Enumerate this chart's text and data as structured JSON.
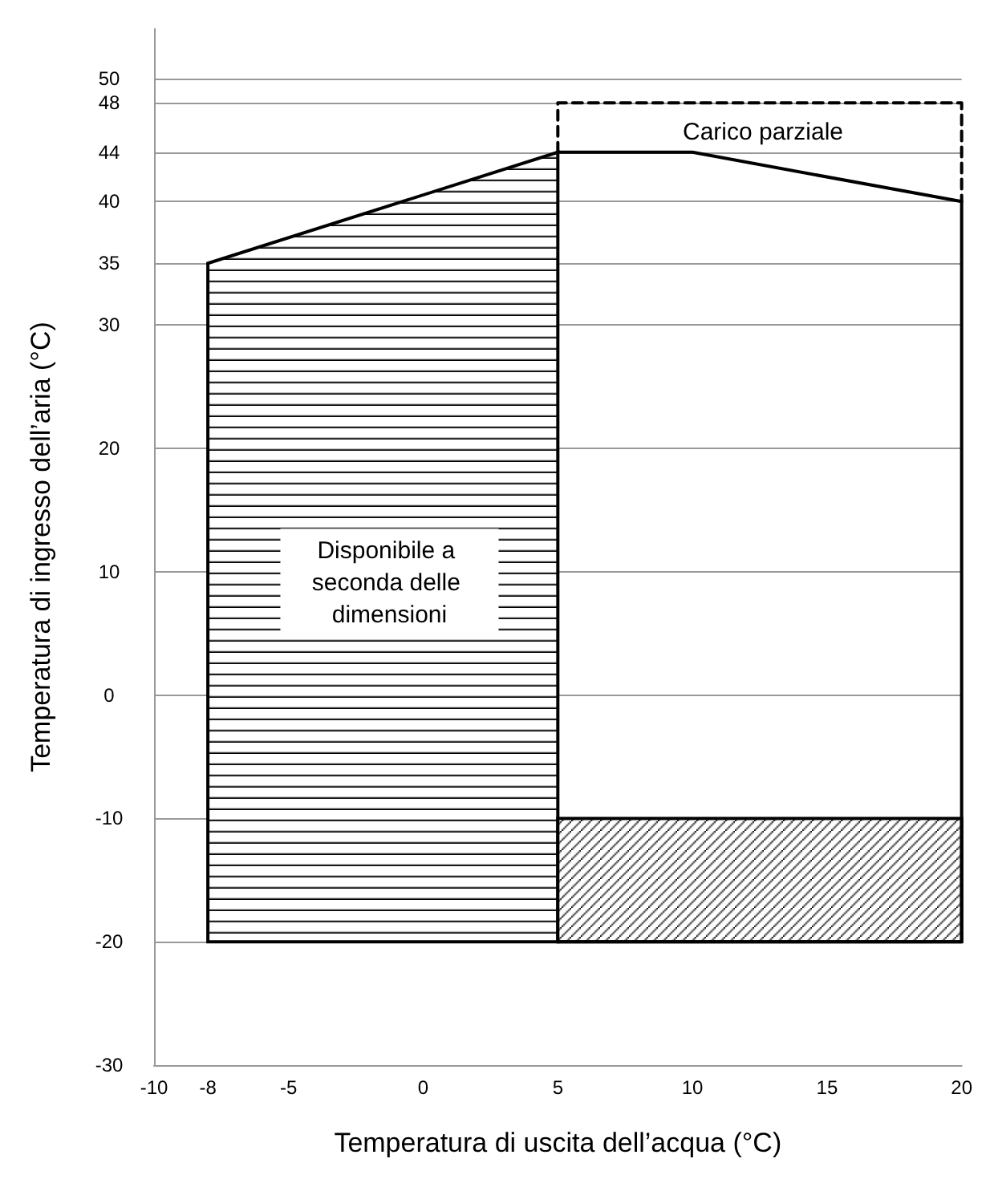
{
  "chart_data": {
    "type": "line",
    "xlabel": "Temperatura di uscita dell’acqua (°C)",
    "ylabel": "Temperatura di ingresso dell’aria (°C)",
    "xlim": [
      -10,
      20
    ],
    "xticks": [
      -10,
      -8,
      -5,
      0,
      5,
      10,
      15,
      20
    ],
    "ylim": [
      -30,
      54
    ],
    "yticks": [
      -30,
      -20,
      -10,
      0,
      10,
      20,
      30,
      35,
      40,
      44,
      48,
      50
    ],
    "grid": "y",
    "marker": "none",
    "series": [
      {
        "type": "area",
        "color": "#000000",
        "x": [
          -8,
          -8,
          5,
          5
        ],
        "values": [
          -20,
          35,
          44,
          -20
        ]
      },
      {
        "type": "area",
        "color": "#000000",
        "x": [
          5,
          5,
          20,
          20
        ],
        "values": [
          -20,
          -10,
          -10,
          -20
        ]
      },
      {
        "color": "#000000",
        "x": [
          5,
          10,
          20,
          20,
          5
        ],
        "values": [
          44,
          44,
          40,
          -20,
          -20
        ]
      },
      {
        "color": "#000000",
        "line_style": "dashed",
        "x": [
          5,
          5,
          20,
          20
        ],
        "values": [
          44,
          48,
          48,
          40
        ]
      }
    ],
    "annotations": [
      "Carico parziale",
      "Disponibile a seconda delle dimensioni"
    ]
  }
}
